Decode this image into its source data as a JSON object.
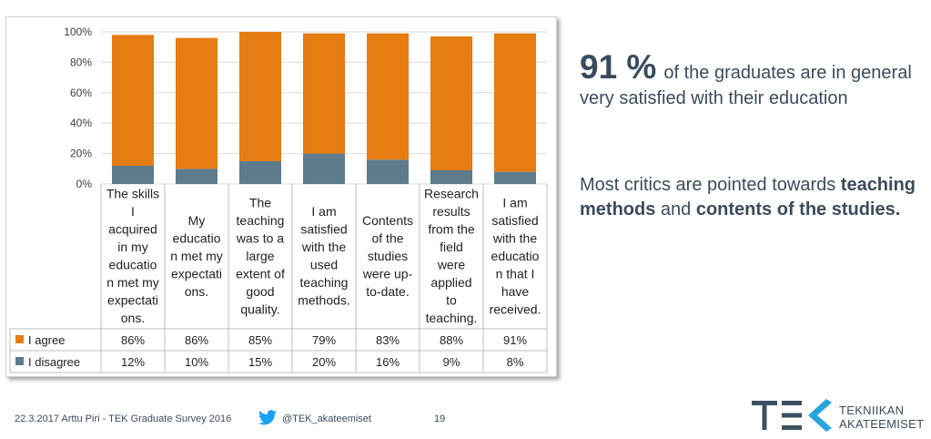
{
  "chart_data": {
    "type": "bar",
    "stacked": true,
    "categories": [
      [
        "The skills",
        "I",
        "acquired",
        "in my",
        "educatio",
        "n met my",
        "expectati",
        "ons."
      ],
      [
        "My",
        "educatio",
        "n met my",
        "expectati",
        "ons."
      ],
      [
        "The",
        "teaching",
        "was to a",
        "large",
        "extent of",
        "good",
        "quality."
      ],
      [
        "I am",
        "satisfied",
        "with the",
        "used",
        "teaching",
        "methods."
      ],
      [
        "Contents",
        "of the",
        "studies",
        "were up-",
        "to-date."
      ],
      [
        "Research",
        "results",
        "from the",
        "field",
        "were",
        "applied",
        "to",
        "teaching."
      ],
      [
        "I am",
        "satisfied",
        "with the",
        "educatio",
        "n that I",
        "have",
        "received."
      ]
    ],
    "series": [
      {
        "name": "I agree",
        "values": [
          86,
          86,
          85,
          79,
          83,
          88,
          91
        ],
        "labels": [
          "86%",
          "86%",
          "85%",
          "79%",
          "83%",
          "88%",
          "91%"
        ],
        "color": "#e67c12"
      },
      {
        "name": "I disagree",
        "values": [
          12,
          10,
          15,
          20,
          16,
          9,
          8
        ],
        "labels": [
          "12%",
          "10%",
          "15%",
          "20%",
          "16%",
          "9%",
          "8%"
        ],
        "color": "#5e7b8c"
      }
    ],
    "ylim": [
      0,
      100
    ],
    "yticks": [
      "0%",
      "20%",
      "40%",
      "60%",
      "80%",
      "100%"
    ],
    "grid": true,
    "data_table": true
  },
  "headline": {
    "big": "91 %",
    "rest": "of the graduates are in general very satisfied with their education"
  },
  "note": {
    "part1": "Most critics are pointed towards ",
    "bold1": "teaching methods",
    "part2": " and ",
    "bold2": "contents of the studies."
  },
  "footer": {
    "date_author": "22.3.2017   Arttu Piri - TEK Graduate Survey 2016",
    "twitter": "@TEK_akateemiset",
    "page": "19"
  },
  "logo": {
    "mark": "TEK",
    "line1": "TEKNIIKAN",
    "line2": "AKATEEMISET",
    "color": "#3d5060",
    "accent": "#2aa5dc"
  },
  "icons": {
    "twitter": "twitter-bird-icon",
    "twitter_color": "#1da1f2"
  }
}
